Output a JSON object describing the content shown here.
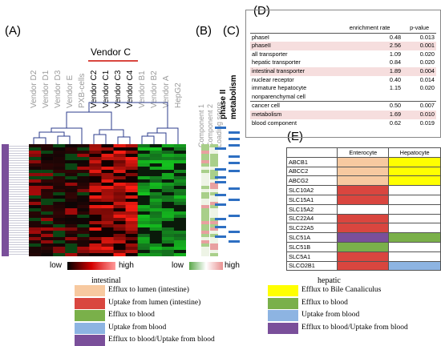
{
  "panels": {
    "A": "(A)",
    "B": "(B)",
    "C": "(C)",
    "D": "(D)",
    "E": "(E)"
  },
  "vendor_c_title": "Vendor C",
  "columns_A": [
    {
      "label": "Vendor D2",
      "dark": false
    },
    {
      "label": "Vendor D1",
      "dark": false
    },
    {
      "label": "Vendor D3",
      "dark": false
    },
    {
      "label": "Vendor E",
      "dark": false
    },
    {
      "label": "PXB-cells",
      "dark": false
    },
    {
      "label": "Vendor C2",
      "dark": true
    },
    {
      "label": "Vendor C1",
      "dark": true
    },
    {
      "label": "Vendor C3",
      "dark": true
    },
    {
      "label": "Vendor C4",
      "dark": true
    },
    {
      "label": "Vendor B1",
      "dark": false
    },
    {
      "label": "Vendor B2",
      "dark": false
    },
    {
      "label": "Vendor A",
      "dark": false
    },
    {
      "label": "HepG2",
      "dark": false
    }
  ],
  "columns_B": [
    "Component 1",
    "Component 2",
    "Loading score"
  ],
  "columns_C": [
    "phase II",
    "metabolism"
  ],
  "colorbar_A": {
    "low": "low",
    "high": "high",
    "colors": [
      "#000000",
      "#d40000",
      "#ff9a9a"
    ]
  },
  "colorbar_B": {
    "low": "low",
    "high": "high",
    "colors": [
      "#5aa84a",
      "#ffffff",
      "#e89090"
    ]
  },
  "table_D": {
    "headers": [
      "",
      "enrichment rate",
      "p-value"
    ],
    "rows": [
      {
        "name": "phaseI",
        "rate": "0.48",
        "p": "0.013",
        "highlight": false
      },
      {
        "name": "phaseII",
        "rate": "2.56",
        "p": "0.001",
        "highlight": true
      },
      {
        "name": "all transporter",
        "rate": "1.09",
        "p": "0.020",
        "highlight": false
      },
      {
        "name": "hepatic transporter",
        "rate": "0.84",
        "p": "0.020",
        "highlight": false
      },
      {
        "name": "intestinal transporter",
        "rate": "1.89",
        "p": "0.004",
        "highlight": true
      },
      {
        "name": "nuclear receptor",
        "rate": "0.40",
        "p": "0.014",
        "highlight": false
      },
      {
        "name": "immature hepatocyte",
        "rate": "1.15",
        "p": "0.020",
        "highlight": false
      },
      {
        "name": "nonparenchymal cell",
        "rate": "",
        "p": "",
        "highlight": false
      },
      {
        "name": "cancer cell",
        "rate": "0.50",
        "p": "0.007",
        "highlight": false
      },
      {
        "name": "metabolism",
        "rate": "1.69",
        "p": "0.010",
        "highlight": true
      },
      {
        "name": "blood component",
        "rate": "0.62",
        "p": "0.019",
        "highlight": false
      }
    ]
  },
  "table_E": {
    "headers": [
      "",
      "Enterocyte",
      "Hepatocyte"
    ],
    "rows": [
      {
        "gene": "ABCB1",
        "ent": "#f7c9a0",
        "hep": "#ffff00"
      },
      {
        "gene": "ABCC2",
        "ent": "#f7c9a0",
        "hep": "#ffff00"
      },
      {
        "gene": "ABCG2",
        "ent": "#f7c9a0",
        "hep": "#ffff00"
      },
      {
        "gene": "SLC10A2",
        "ent": "#d9463f",
        "hep": "#ffffff"
      },
      {
        "gene": "SLC15A1",
        "ent": "#d9463f",
        "hep": "#ffffff"
      },
      {
        "gene": "SLC15A2",
        "ent": "#ffffff",
        "hep": "#ffffff"
      },
      {
        "gene": "SLC22A4",
        "ent": "#d9463f",
        "hep": "#ffffff"
      },
      {
        "gene": "SLC22A5",
        "ent": "#d9463f",
        "hep": "#ffffff"
      },
      {
        "gene": "SLC51A",
        "ent": "#7a4f9a",
        "hep": "#7ab04a"
      },
      {
        "gene": "SLC51B",
        "ent": "#7ab04a",
        "hep": "#ffffff"
      },
      {
        "gene": "SLC5A1",
        "ent": "#d9463f",
        "hep": "#ffffff"
      },
      {
        "gene": "SLCO2B1",
        "ent": "#d9463f",
        "hep": "#8db4e2"
      }
    ]
  },
  "legend_intestinal": {
    "title": "intestinal",
    "items": [
      {
        "color": "#f7c9a0",
        "label": "Efflux to lumen (intestine)"
      },
      {
        "color": "#d9463f",
        "label": "Uptake from lumen (intestine)"
      },
      {
        "color": "#7ab04a",
        "label": "Efflux to blood"
      },
      {
        "color": "#8db4e2",
        "label": "Uptake from blood"
      },
      {
        "color": "#7a4f9a",
        "label": "Efflux to blood/Uptake from blood"
      }
    ]
  },
  "legend_hepatic": {
    "title": "hepatic",
    "items": [
      {
        "color": "#ffff00",
        "label": "Efflux to Bile Canaliculus"
      },
      {
        "color": "#7ab04a",
        "label": "Efflux to blood"
      },
      {
        "color": "#8db4e2",
        "label": "Uptake from blood"
      },
      {
        "color": "#7a4f9a",
        "label": "Efflux to blood/Uptake from blood"
      }
    ]
  }
}
